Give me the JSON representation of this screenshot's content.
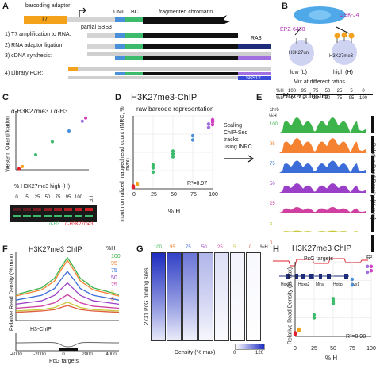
{
  "colors": {
    "ha": "#f4a21c",
    "gray": "#d4d4d4",
    "blue": "#4a90d9",
    "green": "#3dbb6c",
    "black": "#111111",
    "navy": "#1c2c7a",
    "purple": "#a070e0",
    "h100": "#3cb44b",
    "h95": "#f58231",
    "h75": "#3c6cd8",
    "h50": "#9a40c8",
    "h25": "#d040a0",
    "h5": "#c8c83c",
    "h0": "#e06040",
    "red": "#e0202a",
    "pink": "#d040c0"
  },
  "panelA": {
    "label": "A",
    "barcoding_adaptor": "barcoding adaptor",
    "t7": "T7",
    "partial_sbs3": "partial SBS3",
    "umi": "UMI",
    "bc": "BC",
    "fragmented_chromatin": "fragmented chromatin",
    "steps": [
      "1) T7 amplification to RNA:",
      "2) RNA adaptor ligation:",
      "3) cDNA synthesis:",
      "4) Library PCR:"
    ],
    "ra3": "RA3",
    "sbs12": "SBS12"
  },
  "panelB": {
    "label": "B",
    "epz": "EPZ-6438",
    "gsk": "GSK-J4",
    "low_mark": "H3K27un",
    "high_mark": "H3K27me3",
    "low": "low (L)",
    "high": "high (H)",
    "mix": "Mix at different ratios",
    "pct_h_label": "%H",
    "pct_l_label": "%L",
    "pct_h": [
      "100",
      "95",
      "75",
      "50",
      "25",
      "5",
      "0"
    ],
    "pct_l": [
      "0",
      "5",
      "25",
      "50",
      "75",
      "95",
      "100"
    ]
  },
  "panelC": {
    "label": "C",
    "title": "α-H3K27me3 / α-H3",
    "ylabel": "Western Quantification",
    "xlabel": "% H3K27me3 high (H)",
    "lane_labels": [
      "0",
      "5",
      "25",
      "50",
      "75",
      "95",
      "100"
    ],
    "ctrl": "ctrl",
    "legend_h3": "α-H3",
    "legend_k27": "α-H3K27me3"
  },
  "panelD": {
    "label": "D",
    "title": "H3K27me3-ChIP",
    "subtitle": "raw barcode representation",
    "ylabel": "input normalized mapped read count (INRC, % max)",
    "xlabel": "% H",
    "r2": "R²=0.97",
    "xticks": [
      "0",
      "25",
      "50",
      "75",
      "100"
    ]
  },
  "arrowText": [
    "Scaling",
    "ChIP-Seq",
    "tracks",
    "using INRC"
  ],
  "panelE": {
    "label": "E",
    "title": "Hoxa",
    "title_suffix": "cluster",
    "chr": "chr6",
    "pct_h_label": "%H",
    "rows": [
      "100",
      "95",
      "75",
      "50",
      "25",
      "5",
      "0"
    ],
    "ylabel": "Relative Read Density (% max)",
    "genes": [
      "Hoxa1",
      "Hoxa2",
      "Mira",
      "Hotip",
      "Evx1"
    ],
    "r2": "R²"
  },
  "panelF": {
    "label": "F",
    "title": "H3K27me3 ChIP",
    "pct_h_label": "%H",
    "legend": [
      "100",
      "95",
      "75",
      "50",
      "25",
      "5",
      "0"
    ],
    "ylabel": "Relative Read Density (% max)",
    "h3_label": "H3-ChIP",
    "xticks": [
      "-4000",
      "-2000",
      "0",
      "2000",
      "4000"
    ],
    "xlabel": "PcG targets"
  },
  "panelG": {
    "label": "G",
    "cols": [
      "100",
      "95",
      "75",
      "50",
      "25",
      "5",
      "0"
    ],
    "pct_h_label": "%H",
    "ylabel": "2731 PcG binding sites",
    "xlabel": "Density (% max)",
    "scale_min": "0",
    "scale_max": "120"
  },
  "panelH": {
    "label": "H",
    "title": "H3K27me3 ChIP",
    "subtitle": "PcG targets",
    "ylabel": "Relative Read Density (% max)",
    "xlabel": "% H",
    "xticks": [
      "0",
      "25",
      "50",
      "75",
      "100"
    ],
    "r2": "R²=0.98"
  },
  "chart_data": [
    {
      "type": "scatter",
      "title": "α-H3K27me3 / α-H3",
      "xlabel": "% H3K27me3 high (H)",
      "ylabel": "Western Quantification",
      "x": [
        0,
        5,
        25,
        50,
        75,
        95,
        100
      ],
      "y": [
        2,
        6,
        28,
        52,
        72,
        90,
        96
      ]
    },
    {
      "type": "scatter",
      "title": "H3K27me3-ChIP",
      "subtitle": "raw barcode representation",
      "xlabel": "% H",
      "ylabel": "input normalized mapped read count (INRC, % max)",
      "xlim": [
        0,
        100
      ],
      "points": [
        {
          "x": 0,
          "y": 2
        },
        {
          "x": 0,
          "y": 4
        },
        {
          "x": 0,
          "y": 3
        },
        {
          "x": 5,
          "y": 6
        },
        {
          "x": 5,
          "y": 8
        },
        {
          "x": 25,
          "y": 24
        },
        {
          "x": 25,
          "y": 30
        },
        {
          "x": 25,
          "y": 34
        },
        {
          "x": 50,
          "y": 46
        },
        {
          "x": 50,
          "y": 50
        },
        {
          "x": 50,
          "y": 54
        },
        {
          "x": 75,
          "y": 70
        },
        {
          "x": 75,
          "y": 76
        },
        {
          "x": 95,
          "y": 88
        },
        {
          "x": 95,
          "y": 93
        },
        {
          "x": 100,
          "y": 92
        },
        {
          "x": 100,
          "y": 96
        },
        {
          "x": 100,
          "y": 99
        }
      ],
      "r2": 0.97
    },
    {
      "type": "scatter",
      "title": "H3K27me3 ChIP",
      "subtitle": "PcG targets",
      "xlabel": "% H",
      "ylabel": "Relative Read Density (% max)",
      "xlim": [
        0,
        100
      ],
      "points": [
        {
          "x": 0,
          "y": 3
        },
        {
          "x": 0,
          "y": 5
        },
        {
          "x": 5,
          "y": 8
        },
        {
          "x": 5,
          "y": 10
        },
        {
          "x": 25,
          "y": 26
        },
        {
          "x": 25,
          "y": 30
        },
        {
          "x": 50,
          "y": 46
        },
        {
          "x": 50,
          "y": 50
        },
        {
          "x": 50,
          "y": 53
        },
        {
          "x": 75,
          "y": 72
        },
        {
          "x": 75,
          "y": 80
        },
        {
          "x": 95,
          "y": 90
        },
        {
          "x": 95,
          "y": 98
        },
        {
          "x": 100,
          "y": 92
        },
        {
          "x": 100,
          "y": 98
        }
      ],
      "r2": 0.98
    },
    {
      "type": "line",
      "title": "H3K27me3 ChIP",
      "xlabel": "PcG targets",
      "ylabel": "Relative Read Density (% max)",
      "x": [
        -4000,
        -2000,
        -1000,
        -500,
        0,
        500,
        1000,
        2000,
        4000
      ],
      "series": [
        {
          "name": "100",
          "values": [
            38,
            48,
            62,
            78,
            92,
            78,
            62,
            48,
            38
          ]
        },
        {
          "name": "95",
          "values": [
            36,
            45,
            58,
            74,
            88,
            74,
            58,
            45,
            36
          ]
        },
        {
          "name": "75",
          "values": [
            30,
            37,
            47,
            60,
            72,
            60,
            47,
            37,
            30
          ]
        },
        {
          "name": "50",
          "values": [
            24,
            29,
            37,
            46,
            55,
            46,
            37,
            29,
            24
          ]
        },
        {
          "name": "25",
          "values": [
            18,
            21,
            26,
            32,
            38,
            32,
            26,
            21,
            18
          ]
        },
        {
          "name": "5",
          "values": [
            14,
            16,
            19,
            23,
            27,
            23,
            19,
            16,
            14
          ]
        },
        {
          "name": "0",
          "values": [
            12,
            14,
            16,
            19,
            22,
            19,
            16,
            14,
            12
          ]
        }
      ]
    }
  ]
}
